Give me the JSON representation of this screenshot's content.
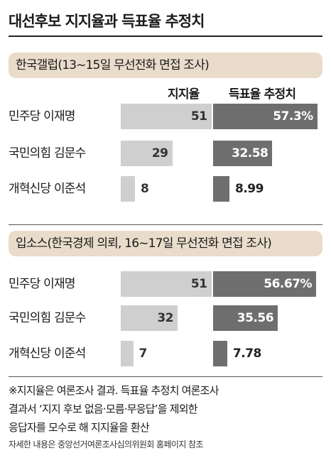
{
  "title": "대선후보 지지율과 득표율 추정치",
  "columns": {
    "support": "지지율",
    "estimate": "득표율 추정치"
  },
  "chart_data": [
    {
      "type": "bar",
      "title": "한국갤럽(13~15일 무선전화 면접 조사)",
      "categories": [
        "민주당 이재명",
        "국민의힘 김문수",
        "개혁신당 이준석"
      ],
      "series": [
        {
          "name": "지지율",
          "values": [
            51,
            29,
            8
          ],
          "labels": [
            "51",
            "29",
            "8"
          ]
        },
        {
          "name": "득표율 추정치",
          "values": [
            57.3,
            32.58,
            8.99
          ],
          "labels": [
            "57.3%",
            "32.58",
            "8.99"
          ]
        }
      ]
    },
    {
      "type": "bar",
      "title": "입소스(한국경제 의뢰, 16~17일 무선전화 면접 조사)",
      "categories": [
        "민주당 이재명",
        "국민의힘 김문수",
        "개혁신당 이준석"
      ],
      "series": [
        {
          "name": "지지율",
          "values": [
            51,
            32,
            7
          ],
          "labels": [
            "51",
            "32",
            "7"
          ]
        },
        {
          "name": "득표율 추정치",
          "values": [
            56.67,
            35.56,
            7.78
          ],
          "labels": [
            "56.67%",
            "35.56",
            "7.78"
          ]
        }
      ]
    }
  ],
  "footnote": [
    "※지지율은 여론조사 결과. 득표율 추정치 여론조사",
    "결과서 ‘지지 후보 없음·모름·무응답’을 제외한",
    "응답자를 모수로 해 지지율을 환산"
  ],
  "source": "자세한 내용은 중앙선거여론조사심의위원회 홈페이지 참조",
  "colors": {
    "support_bar": "#cfcfcf",
    "estimate_bar": "#6e6e6e",
    "banner": "#e9dccb"
  }
}
